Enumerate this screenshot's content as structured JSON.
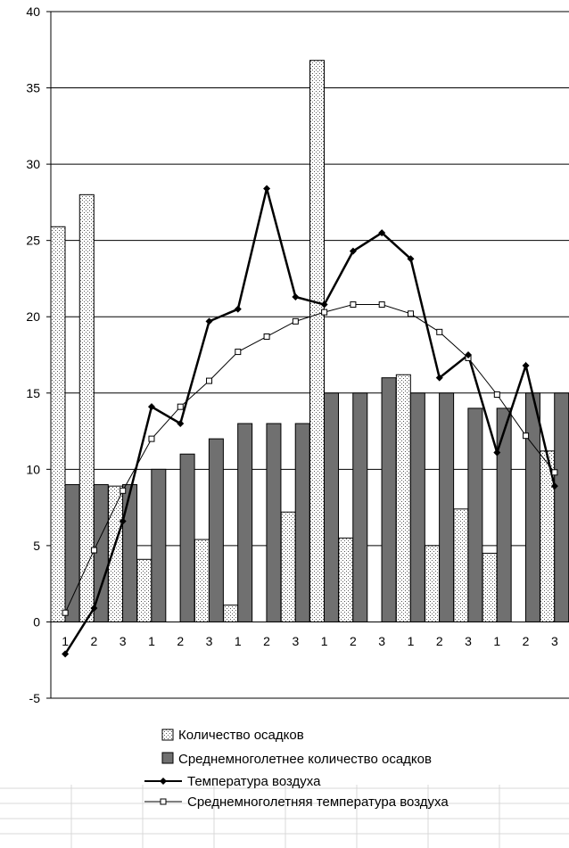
{
  "chart_data": {
    "type": "bar",
    "categories": [
      "1",
      "2",
      "3",
      "1",
      "2",
      "3",
      "1",
      "2",
      "3",
      "1",
      "2",
      "3",
      "1",
      "2",
      "3",
      "1",
      "2",
      "3"
    ],
    "ylim": [
      -5,
      40
    ],
    "yticks": [
      "-5",
      "0",
      "5",
      "10",
      "15",
      "20",
      "25",
      "30",
      "35",
      "40"
    ],
    "grid": true,
    "legend_position": "bottom",
    "series": [
      {
        "name": "Количество осадков",
        "kind": "bar",
        "pattern": "dotted-light",
        "values": [
          25.9,
          28.0,
          8.9,
          4.1,
          0.0,
          5.4,
          1.1,
          0.0,
          7.2,
          36.8,
          5.5,
          0.0,
          16.2,
          5.0,
          7.4,
          4.5,
          0.0,
          11.2
        ]
      },
      {
        "name": "Среднемноголетнее количество осадков",
        "kind": "bar",
        "color": "#707070",
        "values": [
          9,
          9,
          9,
          10,
          11,
          12,
          13,
          13,
          13,
          15,
          15,
          16,
          15,
          15,
          14,
          14,
          15,
          15
        ]
      },
      {
        "name": "Температура воздуха",
        "kind": "line",
        "color": "#000000",
        "marker": "diamond-filled",
        "values": [
          -2.1,
          0.9,
          6.6,
          14.1,
          13.0,
          19.7,
          20.5,
          28.4,
          21.3,
          20.8,
          24.3,
          25.5,
          23.8,
          16.0,
          17.5,
          11.1,
          16.8,
          8.9
        ]
      },
      {
        "name": "Среднемноголетняя температура воздуха",
        "kind": "line",
        "color": "#000000",
        "marker": "square-open",
        "values": [
          0.6,
          4.7,
          8.6,
          12.0,
          14.1,
          15.8,
          17.7,
          18.7,
          19.7,
          20.3,
          20.8,
          20.8,
          20.2,
          19.0,
          17.3,
          14.9,
          12.2,
          9.8
        ]
      }
    ]
  }
}
